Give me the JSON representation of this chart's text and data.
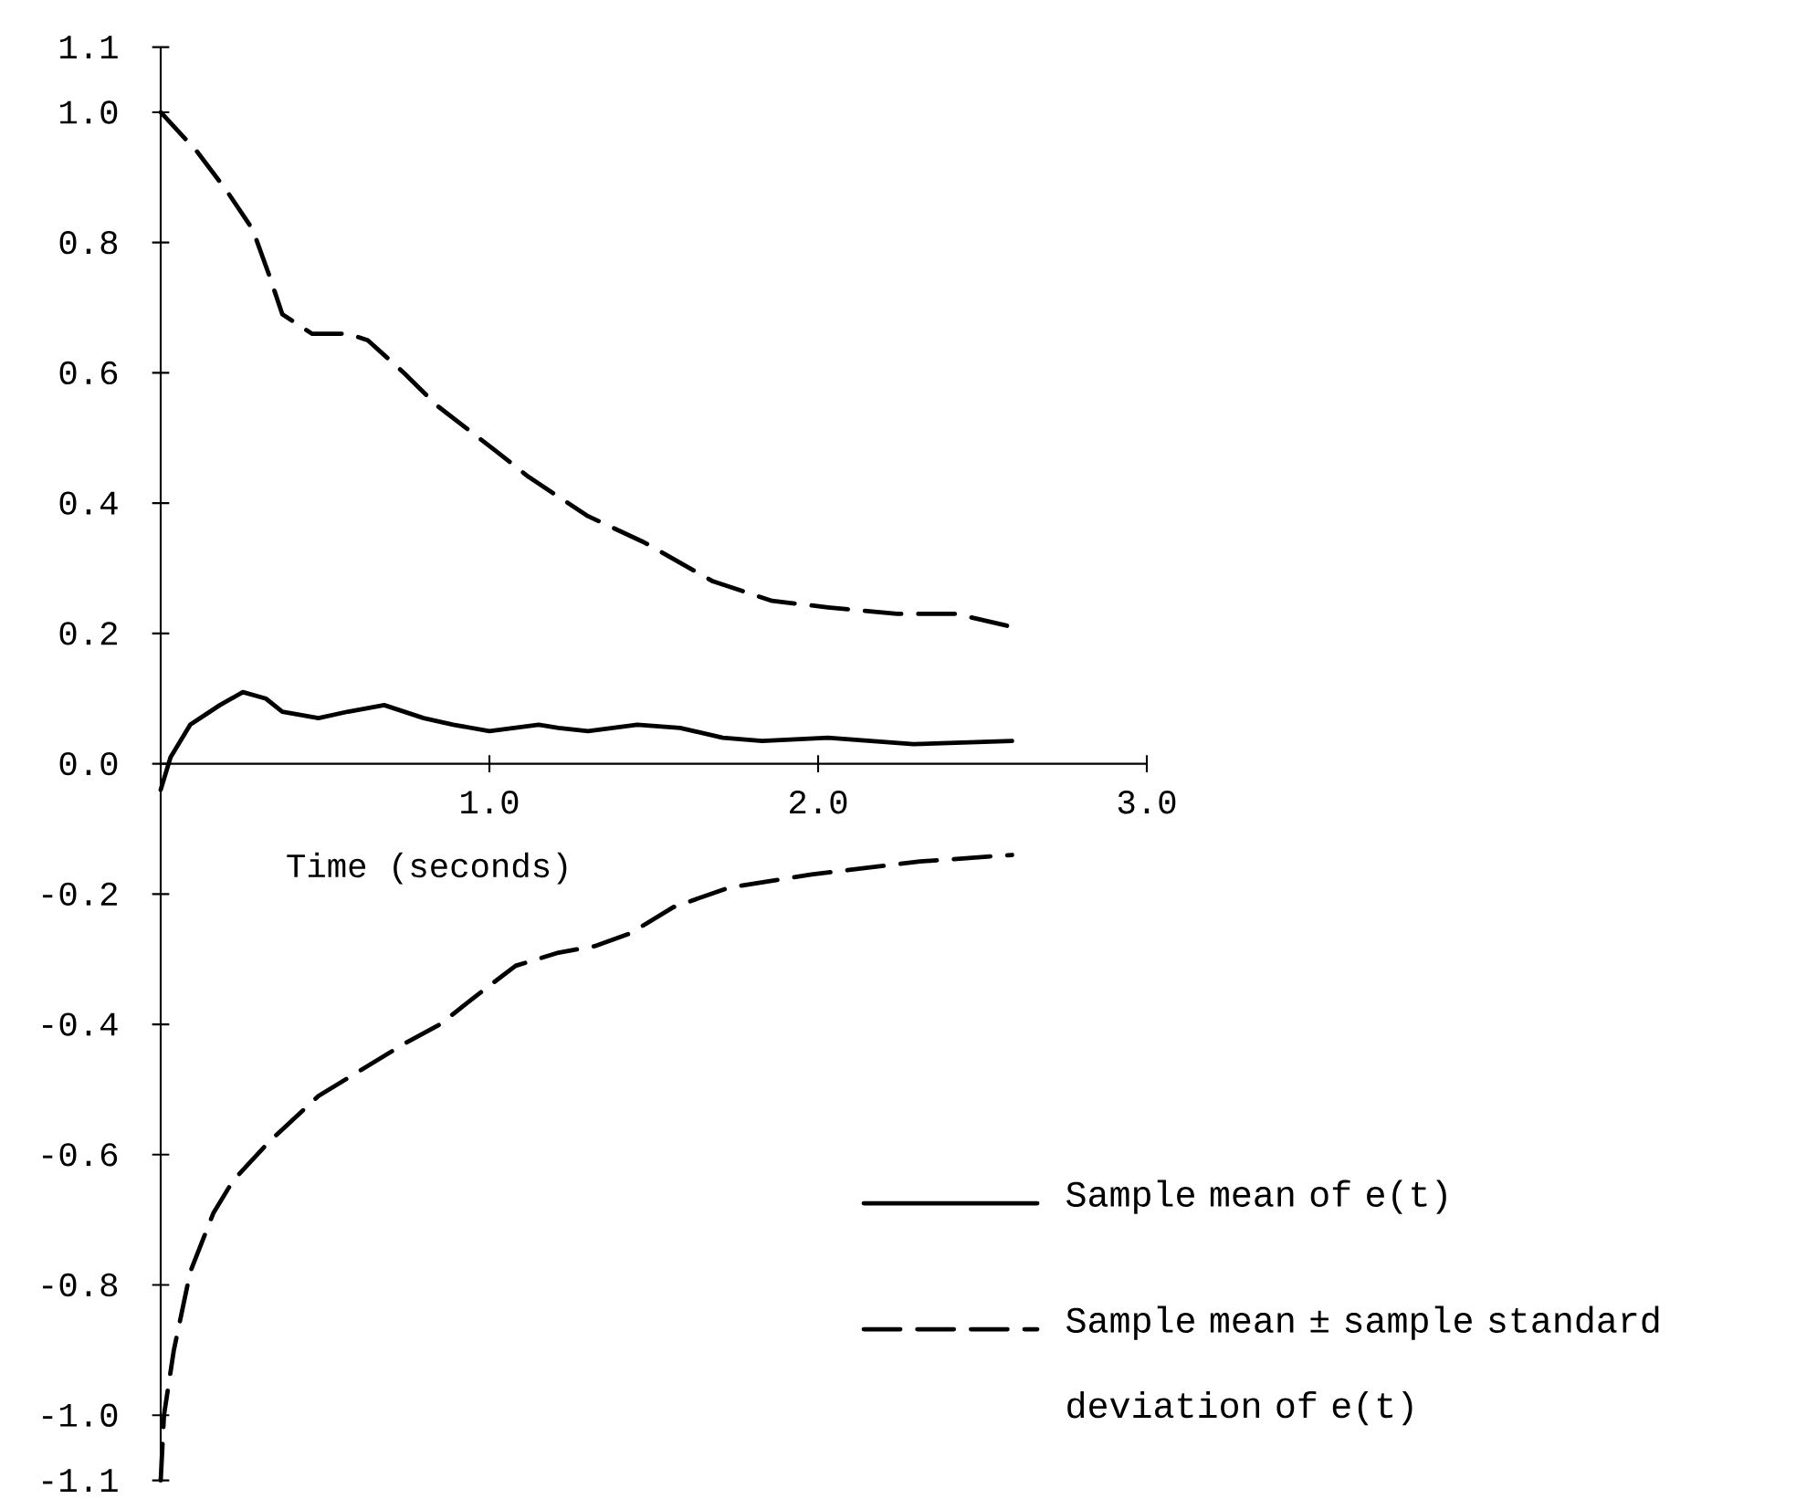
{
  "chart_data": {
    "type": "line",
    "xlabel": "Time (seconds)",
    "xlim": [
      0,
      3.0
    ],
    "ylim": [
      -1.1,
      1.1
    ],
    "xticks": [
      {
        "value": 1.0,
        "label": "1.0"
      },
      {
        "value": 2.0,
        "label": "2.0"
      },
      {
        "value": 3.0,
        "label": "3.0"
      }
    ],
    "yticks": [
      {
        "value": 1.1,
        "label": "1.1"
      },
      {
        "value": 1.0,
        "label": "1.0"
      },
      {
        "value": 0.8,
        "label": "0.8"
      },
      {
        "value": 0.6,
        "label": "0.6"
      },
      {
        "value": 0.4,
        "label": "0.4"
      },
      {
        "value": 0.2,
        "label": "0.2"
      },
      {
        "value": 0.0,
        "label": "0.0"
      },
      {
        "value": -0.2,
        "label": "-0.2"
      },
      {
        "value": -0.4,
        "label": "-0.4"
      },
      {
        "value": -0.6,
        "label": "-0.6"
      },
      {
        "value": -0.8,
        "label": "-0.8"
      },
      {
        "value": -1.0,
        "label": "-1.0"
      },
      {
        "value": -1.1,
        "label": "-1.1"
      }
    ],
    "legend": "bottom right",
    "series": [
      {
        "name": "Sample mean of e(t)",
        "color": "#000000",
        "line_style": "solid",
        "x": [
          0,
          0.03,
          0.09,
          0.18,
          0.25,
          0.32,
          0.37,
          0.48,
          0.57,
          0.68,
          0.8,
          0.89,
          1.0,
          1.15,
          1.21,
          1.3,
          1.45,
          1.58,
          1.71,
          1.83,
          2.03,
          2.29,
          2.59
        ],
        "values": [
          -0.04,
          0.01,
          0.06,
          0.09,
          0.11,
          0.1,
          0.08,
          0.07,
          0.08,
          0.09,
          0.07,
          0.06,
          0.05,
          0.06,
          0.055,
          0.05,
          0.06,
          0.055,
          0.04,
          0.035,
          0.04,
          0.03,
          0.035
        ]
      },
      {
        "name": "Sample mean ± sample standard deviation of e(t)",
        "color": "#000000",
        "line_style": "dashed",
        "x": [
          0,
          0.11,
          0.2,
          0.28,
          0.33,
          0.37,
          0.46,
          0.57,
          0.63,
          0.74,
          0.84,
          1.02,
          1.12,
          1.3,
          1.47,
          1.68,
          1.86,
          2.03,
          2.24,
          2.42,
          2.59
        ],
        "values": [
          1.0,
          0.94,
          0.88,
          0.82,
          0.75,
          0.69,
          0.66,
          0.66,
          0.65,
          0.6,
          0.55,
          0.48,
          0.44,
          0.38,
          0.34,
          0.28,
          0.25,
          0.24,
          0.23,
          0.23,
          0.21
        ]
      },
      {
        "color": "#000000",
        "line_style": "dashed",
        "x": [
          0,
          0.01,
          0.04,
          0.09,
          0.16,
          0.22,
          0.33,
          0.48,
          0.61,
          0.74,
          0.85,
          0.95,
          1.08,
          1.21,
          1.32,
          1.43,
          1.56,
          1.73,
          1.98,
          2.31,
          2.59
        ],
        "values": [
          -1.1,
          -1.0,
          -0.9,
          -0.78,
          -0.69,
          -0.64,
          -0.58,
          -0.51,
          -0.47,
          -0.43,
          -0.4,
          -0.36,
          -0.31,
          -0.29,
          -0.28,
          -0.26,
          -0.22,
          -0.19,
          -0.17,
          -0.15,
          -0.14
        ]
      }
    ]
  }
}
